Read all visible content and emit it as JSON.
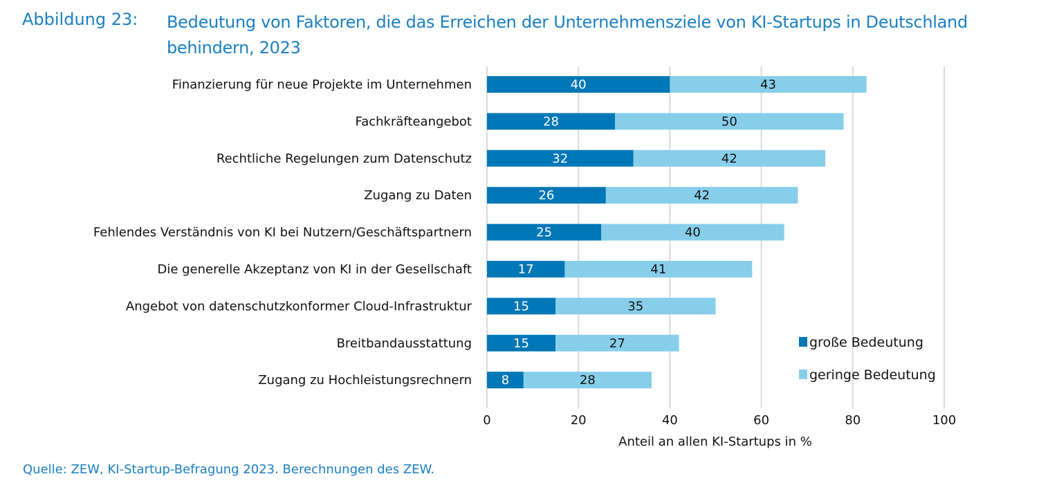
{
  "figure": {
    "number": "Abbildung 23:",
    "title": "Bedeutung von Faktoren, die das Erreichen der Unternehmensziele von KI-Startups in Deutschland behindern, 2023",
    "source": "Quelle: ZEW, KI-Startup-Befragung 2023. Berechnungen des ZEW."
  },
  "colors": {
    "title": "#1a7fc1",
    "series_dark": "#0077b6",
    "series_light": "#87ceeb",
    "grid": "#d9d9d9"
  },
  "chart_data": {
    "type": "bar",
    "orientation": "horizontal",
    "stacked": true,
    "title": "Bedeutung von Faktoren, die das Erreichen der Unternehmensziele von KI-Startups in Deutschland behindern, 2023",
    "xlabel": "Anteil an allen KI-Startups in %",
    "ylabel": "",
    "xlim": [
      0,
      100
    ],
    "xticks": [
      0,
      20,
      40,
      60,
      80,
      100
    ],
    "grid": true,
    "legend_position": "bottom-right",
    "categories": [
      "Finanzierung für neue Projekte im Unternehmen",
      "Fachkräfteangebot",
      "Rechtliche Regelungen zum Datenschutz",
      "Zugang zu Daten",
      "Fehlendes Verständnis von KI bei Nutzern/Geschäftspartnern",
      "Die generelle Akzeptanz von KI in der Gesellschaft",
      "Angebot von datenschutzkonformer Cloud-Infrastruktur",
      "Breitbandausstattung",
      "Zugang zu Hochleistungsrechnern"
    ],
    "series": [
      {
        "name": "große Bedeutung",
        "color": "#0077b6",
        "values": [
          40,
          28,
          32,
          26,
          25,
          17,
          15,
          15,
          8
        ]
      },
      {
        "name": "geringe Bedeutung",
        "color": "#87ceeb",
        "values": [
          43,
          50,
          42,
          42,
          40,
          41,
          35,
          27,
          28
        ]
      }
    ]
  }
}
